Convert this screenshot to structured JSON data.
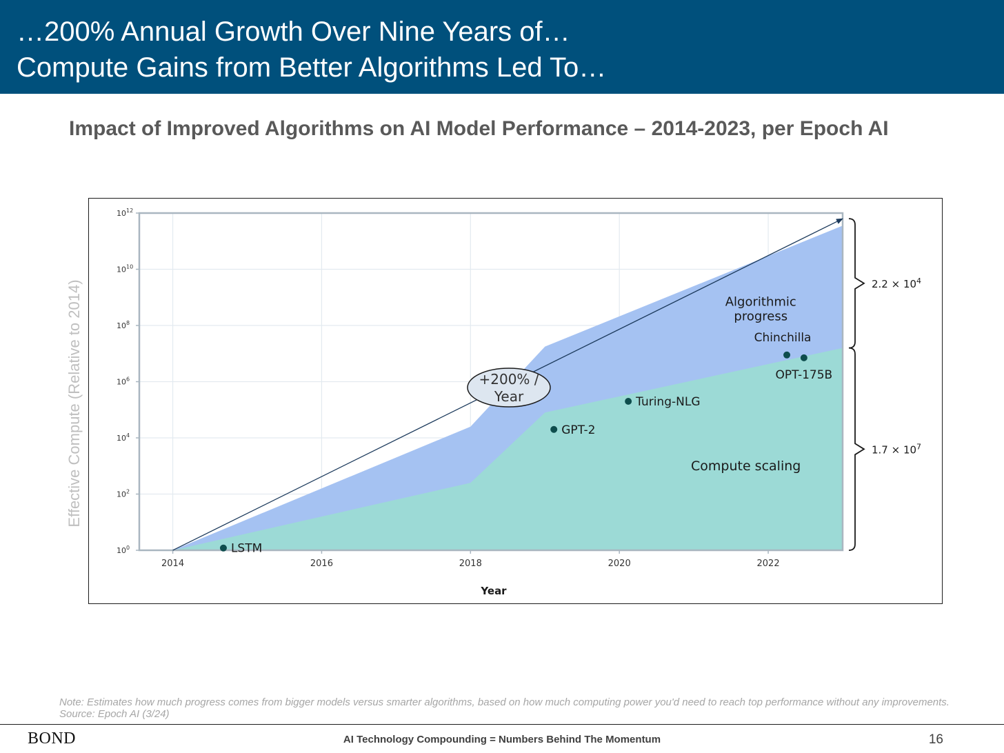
{
  "header": {
    "title_line1": "…200% Annual Growth Over Nine Years of…",
    "title_line2": "Compute Gains from Better Algorithms Led To…"
  },
  "subtitle": "Impact of Improved Algorithms on AI Model Performance – 2014-2023, per Epoch AI",
  "y_axis_title": "Effective Compute (Relative to 2014)",
  "note": "Note: Estimates how much progress comes from bigger models versus smarter algorithms, based on how much computing power you'd need to reach top performance without any improvements. Source: Epoch AI (3/24)",
  "footer": {
    "brand": "BOND",
    "text": "AI Technology Compounding = Numbers Behind The Momentum",
    "page": "16"
  },
  "colors": {
    "header_bg": "#00507c",
    "algorithmic_fill": "#a5c2f2",
    "compute_fill": "#9cdad6",
    "marker": "#0e4d4d",
    "arrow": "#1c3a5c"
  },
  "chart_data": {
    "type": "area",
    "xlabel": "Year",
    "ylabel": "",
    "x_scale": "linear",
    "y_scale": "log10",
    "xlim": [
      2013.55,
      2023.0
    ],
    "ylim_exponent": [
      0,
      12
    ],
    "x_ticks": [
      2014,
      2016,
      2018,
      2020,
      2022
    ],
    "x_tick_labels": [
      "2014",
      "2016",
      "2018",
      "2020",
      "2022"
    ],
    "y_tick_exponents": [
      0,
      2,
      4,
      6,
      8,
      10,
      12
    ],
    "y_tick_labels": [
      {
        "base": "10",
        "exp": "0"
      },
      {
        "base": "10",
        "exp": "2"
      },
      {
        "base": "10",
        "exp": "4"
      },
      {
        "base": "10",
        "exp": "6"
      },
      {
        "base": "10",
        "exp": "8"
      },
      {
        "base": "10",
        "exp": "10"
      },
      {
        "base": "10",
        "exp": "12"
      }
    ],
    "grid": true,
    "series": [
      {
        "name": "Compute scaling",
        "label_year": 2021.7,
        "label_exp": 2.85,
        "points": [
          {
            "year": 2014.0,
            "exp": 0.0
          },
          {
            "year": 2018.0,
            "exp": 2.4
          },
          {
            "year": 2019.0,
            "exp": 4.9
          },
          {
            "year": 2023.0,
            "exp": 7.2
          }
        ]
      },
      {
        "name": "Algorithmic",
        "name_line2": "progress",
        "label_year": 2021.9,
        "label_exp": 8.7,
        "points": [
          {
            "year": 2014.0,
            "exp": 0.0
          },
          {
            "year": 2018.0,
            "exp": 4.4
          },
          {
            "year": 2019.0,
            "exp": 7.25
          },
          {
            "year": 2023.0,
            "exp": 11.55
          }
        ]
      }
    ],
    "models": [
      {
        "name": "LSTM",
        "year": 2014.68,
        "exp": 0.08,
        "label_pos": "right"
      },
      {
        "name": "GPT-2",
        "year": 2019.12,
        "exp": 4.3,
        "label_pos": "right"
      },
      {
        "name": "Turing-NLG",
        "year": 2020.12,
        "exp": 5.3,
        "label_pos": "right"
      },
      {
        "name": "Chinchilla",
        "year": 2022.25,
        "exp": 6.95,
        "label_pos": "above"
      },
      {
        "name": "OPT-175B",
        "year": 2022.48,
        "exp": 6.85,
        "label_pos": "below"
      }
    ],
    "trend_arrow": {
      "from": {
        "year": 2014.0,
        "exp": 0.0
      },
      "to": {
        "year": 2023.0,
        "exp": 11.8
      },
      "label_line1": "+200% /",
      "label_line2": "Year"
    },
    "brackets": [
      {
        "label": "2.2 × 10",
        "label_exp": "4",
        "from_exp": 7.2,
        "to_exp": 11.8
      },
      {
        "label": "1.7 × 10",
        "label_exp": "7",
        "from_exp": 0.0,
        "to_exp": 7.2
      }
    ]
  }
}
